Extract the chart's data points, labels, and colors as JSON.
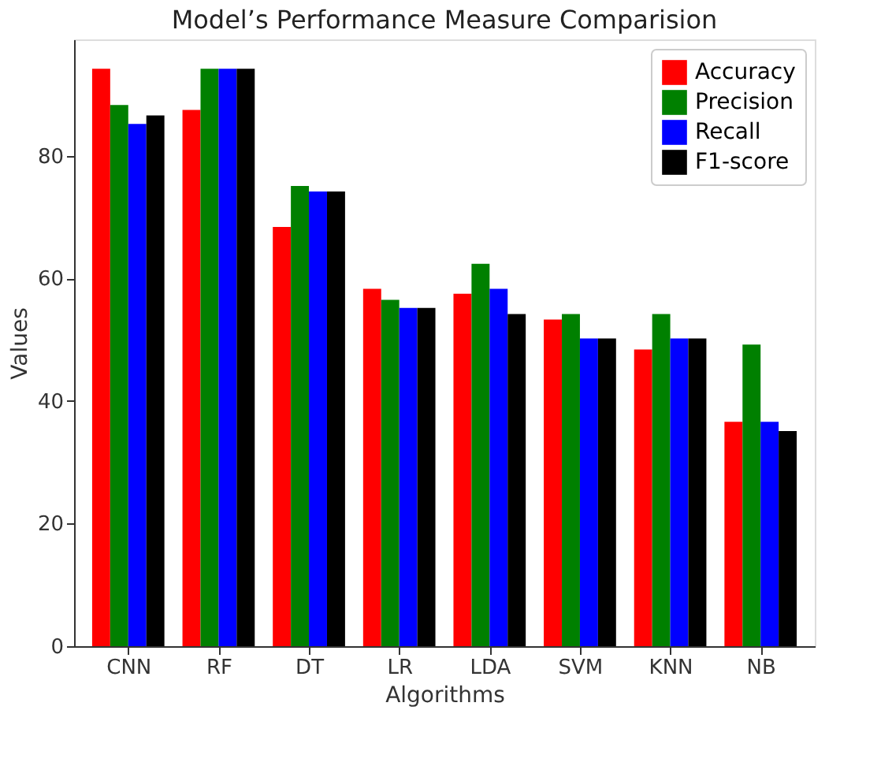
{
  "chart_data": {
    "type": "bar",
    "title": "Model’s Performance Measure Comparision",
    "xlabel": "Algorithms",
    "ylabel": "Values",
    "categories": [
      "CNN",
      "RF",
      "DT",
      "LR",
      "LDA",
      "SVM",
      "KNN",
      "NB"
    ],
    "series": [
      {
        "name": "Accuracy",
        "color": "#ff0000",
        "values": [
          94.2,
          87.5,
          68.4,
          58.3,
          57.5,
          53.3,
          48.4,
          36.6
        ]
      },
      {
        "name": "Precision",
        "color": "#008000",
        "values": [
          88.3,
          94.2,
          75.1,
          56.5,
          62.4,
          54.2,
          54.2,
          49.2
        ]
      },
      {
        "name": "Recall",
        "color": "#0000ff",
        "values": [
          85.2,
          94.2,
          74.2,
          55.2,
          58.3,
          50.2,
          50.2,
          36.6
        ]
      },
      {
        "name": "F1-score",
        "color": "#000000",
        "values": [
          86.6,
          94.2,
          74.2,
          55.2,
          54.2,
          50.2,
          50.2,
          35.1
        ]
      }
    ],
    "ylim": [
      0,
      99
    ],
    "yticks": [
      0,
      20,
      40,
      60,
      80
    ],
    "grid": false,
    "legend": "top right"
  }
}
